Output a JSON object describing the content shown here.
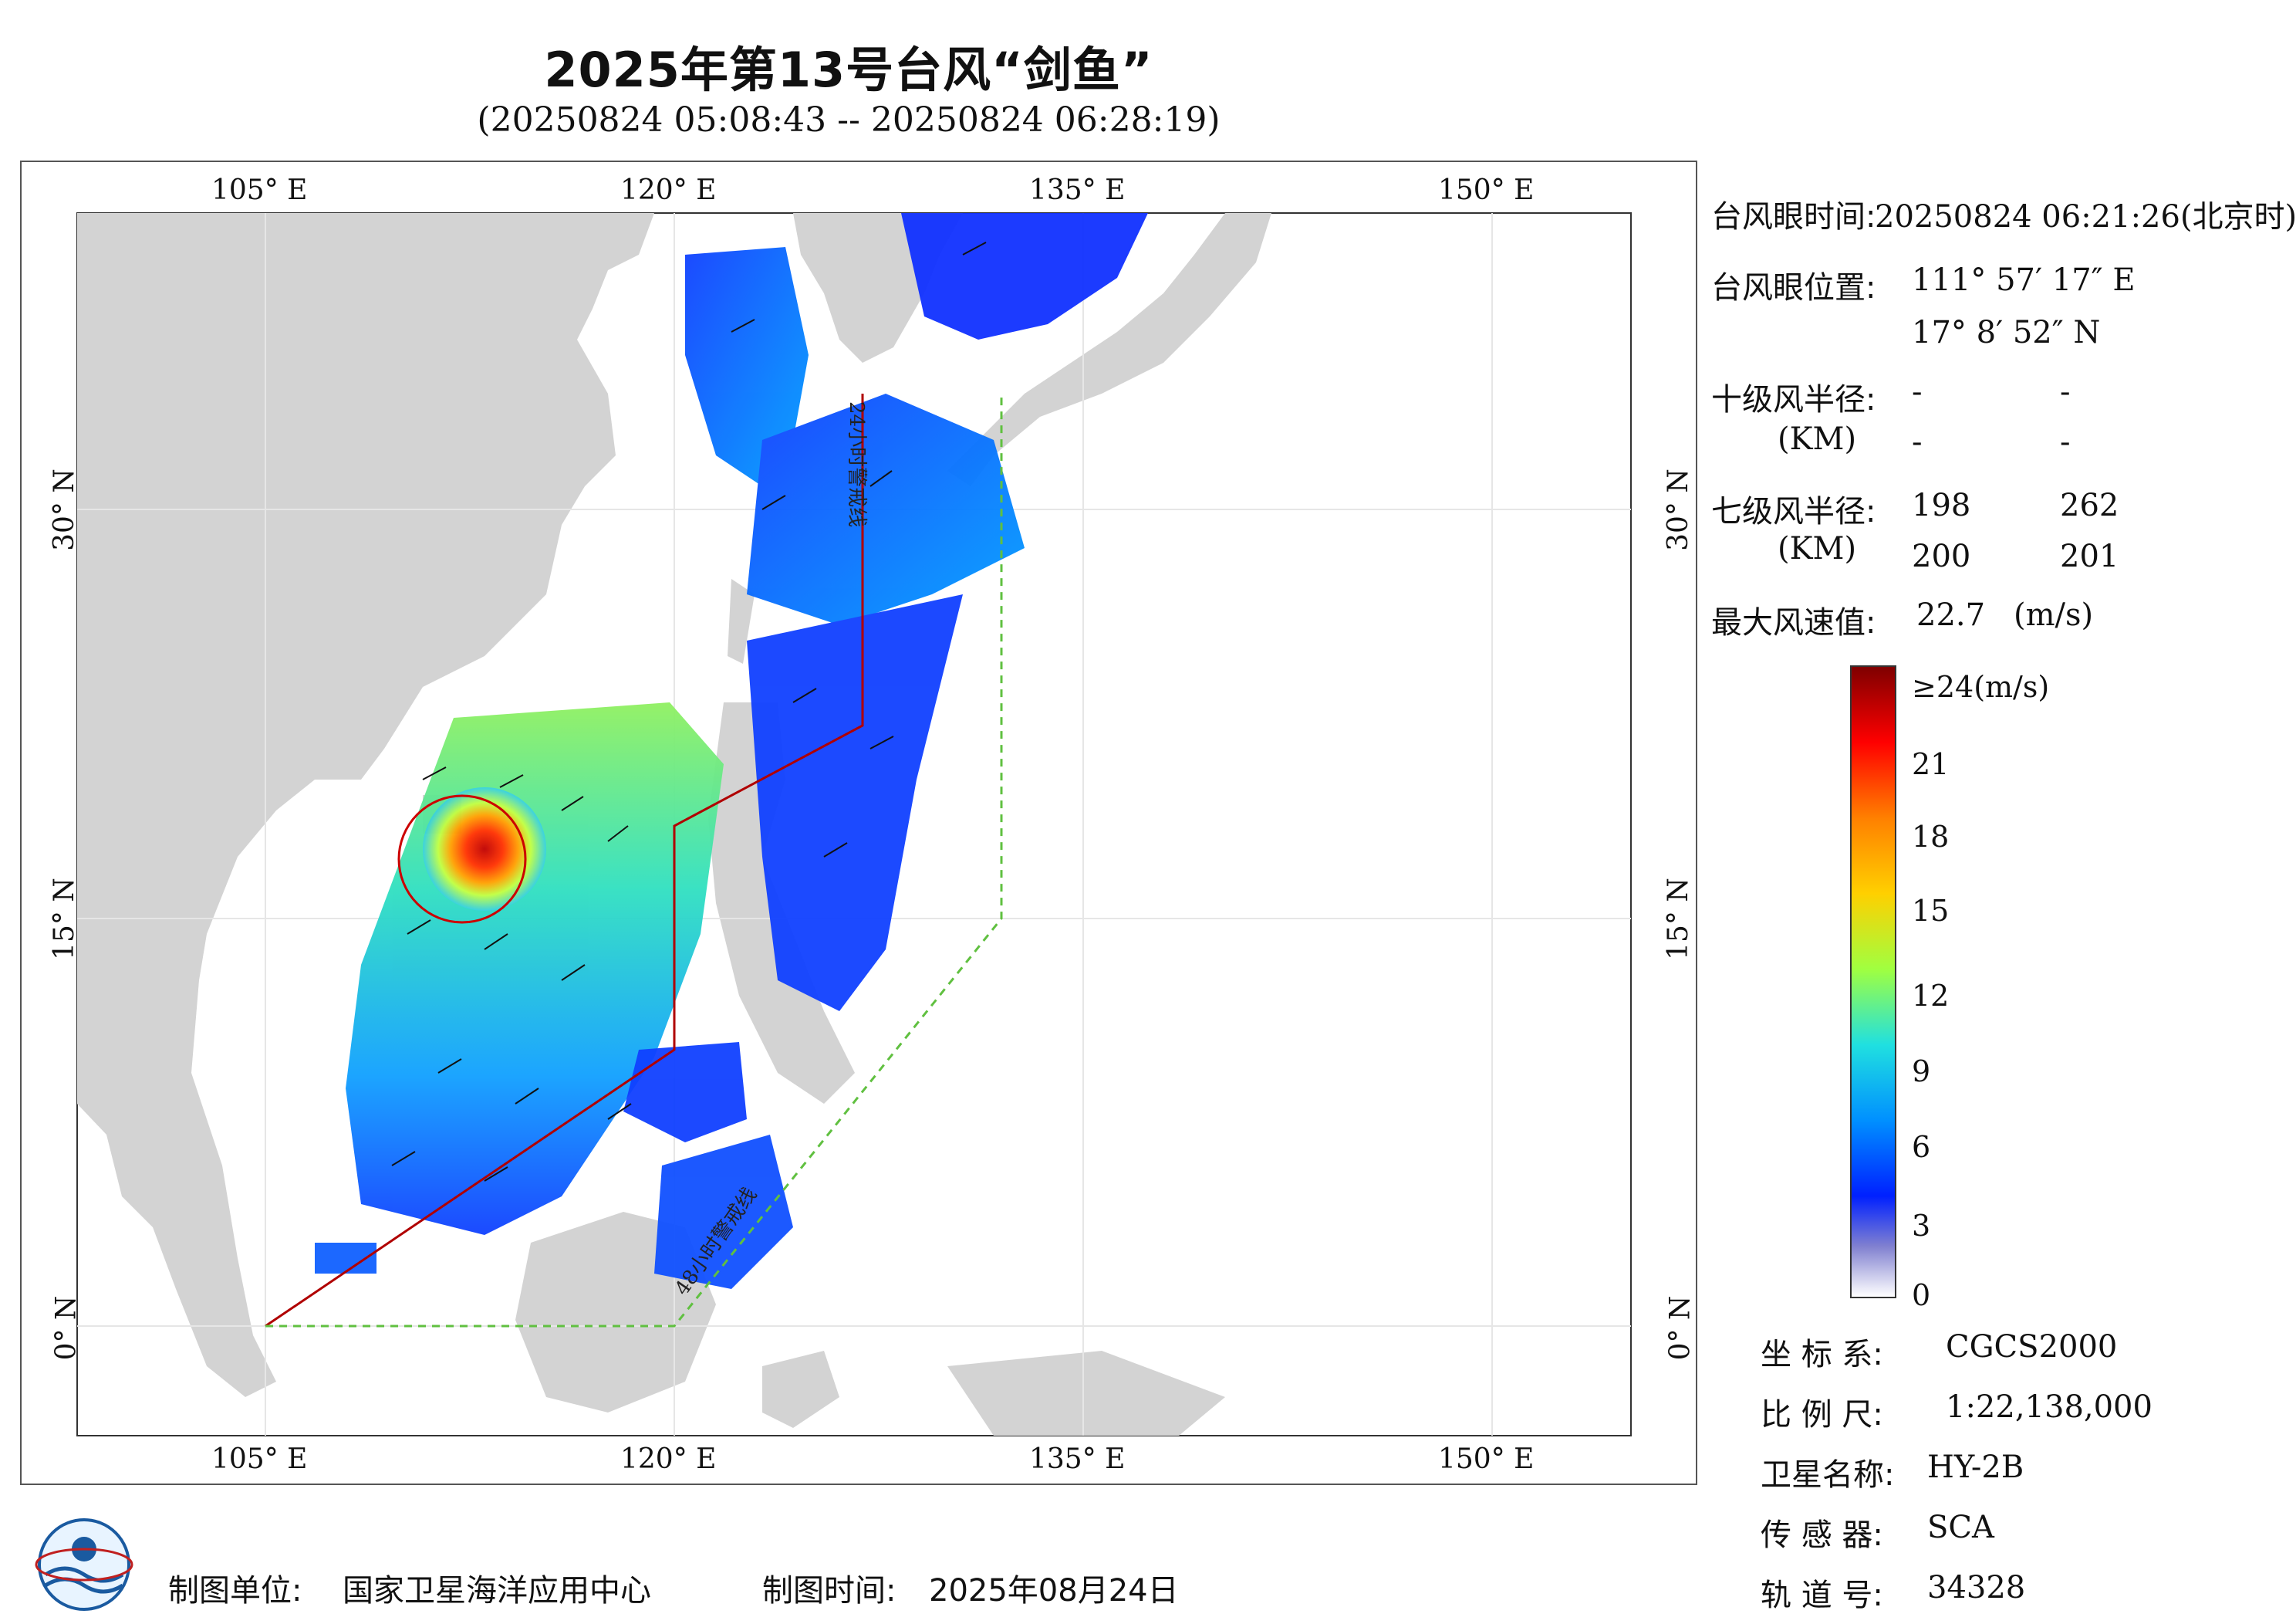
{
  "title": "2025年第13号台风“剑鱼”",
  "subtitle": "(20250824 05:08:43 -- 20250824 06:28:19)",
  "map": {
    "lon_labels": [
      "105° E",
      "120° E",
      "135° E",
      "150° E"
    ],
    "lat_labels": [
      "30° N",
      "15° N",
      "0° N"
    ],
    "warning_line_24h": "24小时警戒线",
    "warning_line_48h": "48小时警戒线"
  },
  "info": {
    "eye_time_label": "台风眼时间:",
    "eye_time_value": "20250824 06:21:26(北京时)",
    "eye_pos_label": "台风眼位置:",
    "eye_lon": "111° 57′ 17″ E",
    "eye_lat": "17° 8′ 52″ N",
    "r10_label": "十级风半径:",
    "r10_unit": "(KM)",
    "r10_values": [
      "-",
      "-",
      "-",
      "-"
    ],
    "r7_label": "七级风半径:",
    "r7_unit": "(KM)",
    "r7_values": [
      "198",
      "262",
      "200",
      "201"
    ],
    "max_wind_label": "最大风速值:",
    "max_wind_value": "22.7",
    "max_wind_unit": "(m/s)"
  },
  "colorbar": {
    "labels": [
      "≥24(m/s)",
      "21",
      "18",
      "15",
      "12",
      "9",
      "6",
      "3",
      "0"
    ],
    "colors": [
      "#7f0000",
      "#ff0000",
      "#ff8000",
      "#ffd000",
      "#a0ff40",
      "#20e0e0",
      "#0090ff",
      "#0020ff",
      "#ffffff"
    ]
  },
  "meta": {
    "crs_label": "坐 标 系:",
    "crs_value": "CGCS2000",
    "scale_label": "比 例 尺:",
    "scale_value": "1:22,138,000",
    "satellite_label": "卫星名称:",
    "satellite_value": "HY-2B",
    "sensor_label": "传 感 器:",
    "sensor_value": "SCA",
    "orbit_label": "轨 道 号:",
    "orbit_value": "34328"
  },
  "footer": {
    "producer_label": "制图单位:",
    "producer_value": "国家卫星海洋应用中心",
    "date_label": "制图时间:",
    "date_value": "2025年08月24日"
  }
}
